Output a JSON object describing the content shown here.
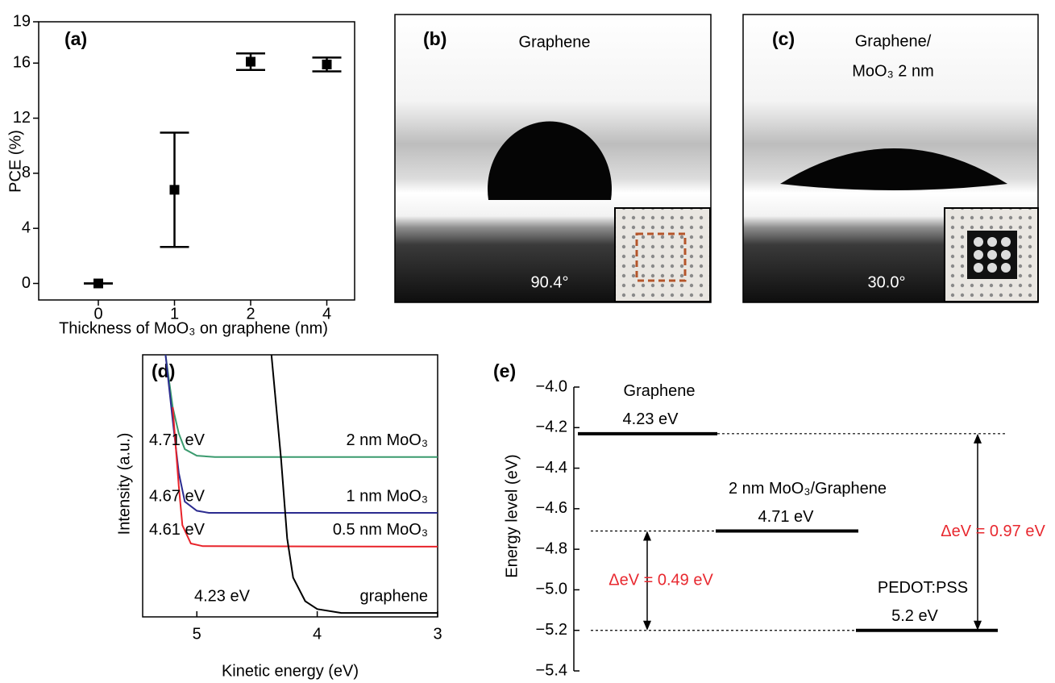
{
  "chart_data": [
    {
      "type": "errorbar",
      "panel": "(a)",
      "ylabel": "PCE (%)",
      "xlabel": "Thickness of MoO₃ on graphene (nm)",
      "categories": [
        "0",
        "1",
        "2",
        "4"
      ],
      "values": [
        0,
        6.8,
        16.1,
        15.9
      ],
      "errors": [
        0,
        4.15,
        0.6,
        0.5
      ],
      "color": "#000000",
      "ylim": [
        -1.2,
        19
      ],
      "yticks": [
        0,
        4,
        8,
        12,
        16,
        19
      ]
    },
    {
      "type": "line",
      "panel": "(d)",
      "xlabel": "Kinetic energy (eV)",
      "ylabel": "Intensity (a.u.)",
      "xlim": [
        5.45,
        3
      ],
      "xticks": [
        5,
        4,
        3
      ],
      "ylim": [
        0,
        10
      ],
      "series": [
        {
          "name": "2 nm MoO₃",
          "annotation": "4.71 eV",
          "color": "#3a9a6e",
          "x": [
            5.26,
            5.2,
            5.15,
            5.1,
            5.0,
            4.85,
            4.5,
            3
          ],
          "values": [
            10,
            8,
            7,
            6.4,
            6.15,
            6.1,
            6.1,
            6.1
          ]
        },
        {
          "name": "1 nm MoO₃",
          "annotation": "4.67 eV",
          "color": "#2b2b8f",
          "x": [
            5.26,
            5.2,
            5.15,
            5.1,
            5.0,
            4.9,
            3
          ],
          "values": [
            10,
            7.5,
            5.5,
            4.4,
            4.05,
            3.97,
            3.97
          ]
        },
        {
          "name": "0.5 nm MoO₃",
          "annotation": "4.61 eV",
          "color": "#e8232a",
          "x": [
            5.2,
            5.15,
            5.12,
            5.05,
            4.95,
            3
          ],
          "values": [
            8,
            5,
            3.5,
            2.8,
            2.7,
            2.68
          ]
        },
        {
          "name": "graphene",
          "annotation": "4.23 eV",
          "color": "#000000",
          "x": [
            4.38,
            4.3,
            4.25,
            4.2,
            4.1,
            4.0,
            3.8,
            3
          ],
          "values": [
            10,
            6,
            3,
            1.5,
            0.6,
            0.3,
            0.15,
            0.15
          ]
        }
      ]
    },
    {
      "type": "energy_diagram",
      "panel": "(e)",
      "ylabel": "Energy level (eV)",
      "ylim": [
        -5.4,
        -4.0
      ],
      "yticks": [
        {
          "value": -4.0,
          "label": "−4.0"
        },
        {
          "value": -4.2,
          "label": "−4.2"
        },
        {
          "value": -4.4,
          "label": "−4.4"
        },
        {
          "value": -4.6,
          "label": "−4.6"
        },
        {
          "value": -4.8,
          "label": "−4.8"
        },
        {
          "value": -5.0,
          "label": "−5.0"
        },
        {
          "value": -5.2,
          "label": "−5.2"
        },
        {
          "value": -5.4,
          "label": "−5.4"
        }
      ],
      "levels": [
        {
          "name": "Graphene",
          "value": -4.23,
          "label": "4.23 eV"
        },
        {
          "name": "2 nm MoO₃/Graphene",
          "value": -4.71,
          "label": "4.71 eV"
        },
        {
          "name": "PEDOT:PSS",
          "value": -5.2,
          "label": "5.2 eV"
        }
      ],
      "arrow_color": "#e8282f",
      "arrows": [
        {
          "from": -4.71,
          "to": -5.2,
          "label": "ΔeV = 0.49 eV"
        },
        {
          "from": -4.23,
          "to": -5.2,
          "label": "ΔeV = 0.97 eV"
        }
      ]
    }
  ],
  "images": [
    {
      "panel": "(b)",
      "caption": [
        "Graphene"
      ],
      "angle": "90.4°"
    },
    {
      "panel": "(c)",
      "caption": [
        "Graphene/",
        "MoO₃ 2 nm"
      ],
      "angle": "30.0°"
    }
  ]
}
